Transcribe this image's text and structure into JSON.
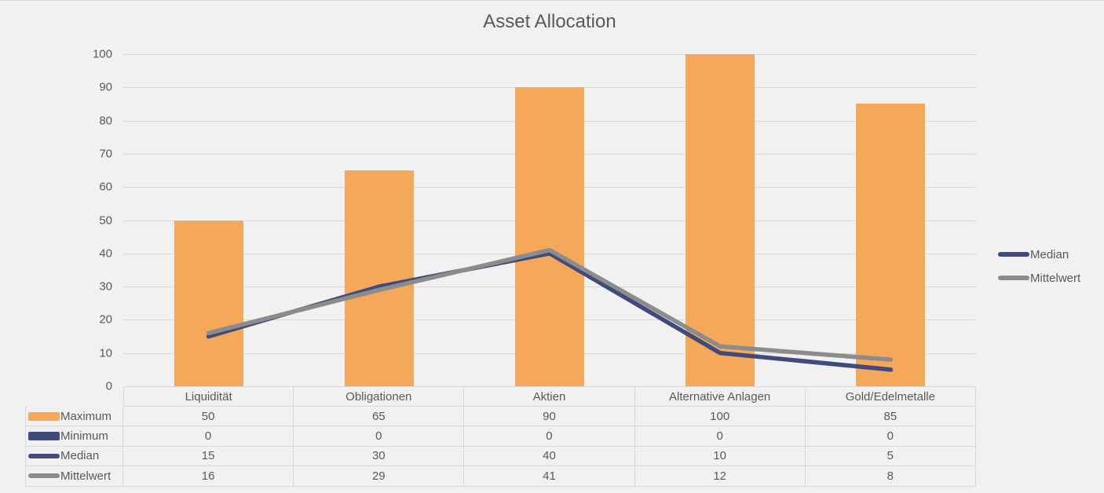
{
  "title": "Asset Allocation",
  "colors": {
    "background": "#F1F1F1",
    "gridline": "#D9D9D9",
    "table_border": "#D9D9D9",
    "text": "#595959",
    "maximum_orange": "#F5A75A",
    "median_navy": "#3E4B7C",
    "mittelwert_gray": "#8C8C8C"
  },
  "y_axis": {
    "tick_labels": [
      "0",
      "10",
      "20",
      "30",
      "40",
      "50",
      "60",
      "70",
      "80",
      "90",
      "100"
    ]
  },
  "chart_data": {
    "type": "bar",
    "subtype": "bar-line-combo",
    "title": "Asset Allocation",
    "categories": [
      "Liquidität",
      "Obligationen",
      "Aktien",
      "Alternative Anlagen",
      "Gold/Edelmetalle"
    ],
    "series": [
      {
        "name": "Maximum",
        "type": "bar",
        "color": "#F5A75A",
        "values": [
          50,
          65,
          90,
          100,
          85
        ]
      },
      {
        "name": "Minimum",
        "type": "bar",
        "color": "#3E4B7C",
        "values": [
          0,
          0,
          0,
          0,
          0
        ]
      },
      {
        "name": "Median",
        "type": "line",
        "color": "#3E4B7C",
        "values": [
          15,
          30,
          40,
          10,
          5
        ]
      },
      {
        "name": "Mittelwert",
        "type": "line",
        "color": "#8C8C8C",
        "values": [
          16,
          29,
          41,
          12,
          8
        ]
      }
    ],
    "xlabel": "",
    "ylabel": "",
    "ylim": [
      0,
      100
    ],
    "y_tick_step": 10,
    "grid": "horizontal",
    "legend_position": "right",
    "data_table_shown": true
  },
  "legend": {
    "items": [
      {
        "label": "Median",
        "color": "#3E4B7C"
      },
      {
        "label": "Mittelwert",
        "color": "#8C8C8C"
      }
    ]
  },
  "table": {
    "column_headers": [
      "Liquidität",
      "Obligationen",
      "Aktien",
      "Alternative Anlagen",
      "Gold/Edelmetalle"
    ],
    "rows": [
      {
        "label": "Maximum",
        "swatch": "bar",
        "color": "#F5A75A",
        "values": [
          "50",
          "65",
          "90",
          "100",
          "85"
        ]
      },
      {
        "label": "Minimum",
        "swatch": "bar",
        "color": "#3E4B7C",
        "values": [
          "0",
          "0",
          "0",
          "0",
          "0"
        ]
      },
      {
        "label": "Median",
        "swatch": "line",
        "color": "#3E4B7C",
        "values": [
          "15",
          "30",
          "40",
          "10",
          "5"
        ]
      },
      {
        "label": "Mittelwert",
        "swatch": "line",
        "color": "#8C8C8C",
        "values": [
          "16",
          "29",
          "41",
          "12",
          "8"
        ]
      }
    ]
  }
}
